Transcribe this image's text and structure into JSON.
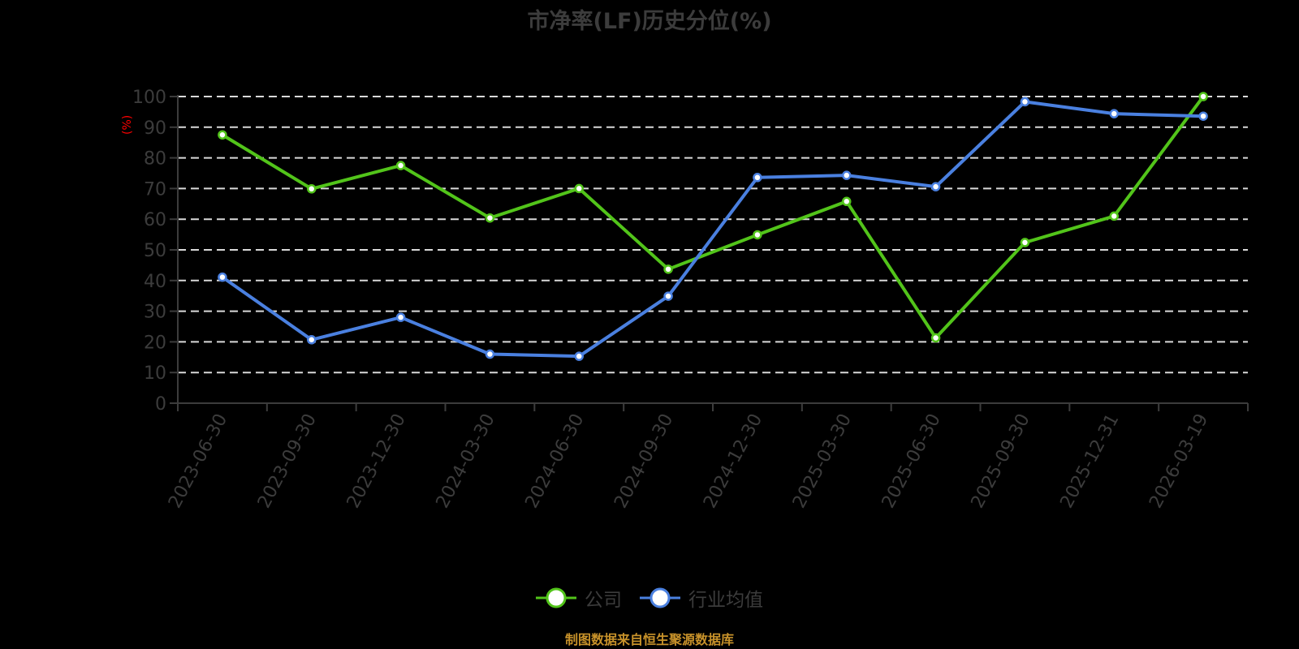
{
  "title": "市净率(LF)历史分位(%)",
  "y_unit_label": "(%)",
  "footer": "制图数据来自恒生聚源数据库",
  "legend": [
    {
      "label": "公司",
      "color": "#52c41a"
    },
    {
      "label": "行业均值",
      "color": "#4a80e0"
    }
  ],
  "colors": {
    "background": "#000000",
    "axis": "#3c3c3c",
    "grid": "#d9d9d9",
    "tick_label": "#3c3c3c",
    "company": "#52c41a",
    "industry": "#4a80e0",
    "unit_label": "#ff0000",
    "footer": "#c8922a"
  },
  "chart_data": {
    "type": "line",
    "title": "市净率(LF)历史分位(%)",
    "xlabel": "",
    "ylabel": "(%)",
    "ylim": [
      0,
      100
    ],
    "yticks": [
      0,
      10,
      20,
      30,
      40,
      50,
      60,
      70,
      80,
      90,
      100
    ],
    "grid": true,
    "legend_position": "bottom",
    "categories": [
      "2023-06-30",
      "2023-09-30",
      "2023-12-30",
      "2024-03-30",
      "2024-06-30",
      "2024-09-30",
      "2024-12-30",
      "2025-03-30",
      "2025-06-30",
      "2025-09-30",
      "2025-12-31",
      "2026-03-19"
    ],
    "series": [
      {
        "name": "公司",
        "color": "#52c41a",
        "values": [
          87.5,
          69.9,
          77.5,
          60.4,
          70.0,
          43.7,
          54.9,
          65.8,
          21.3,
          52.4,
          61.0,
          100.0
        ]
      },
      {
        "name": "行业均值",
        "color": "#4a80e0",
        "values": [
          41.1,
          20.7,
          28.0,
          16.0,
          15.3,
          34.9,
          73.6,
          74.3,
          70.6,
          98.3,
          94.4,
          93.6
        ]
      }
    ]
  }
}
